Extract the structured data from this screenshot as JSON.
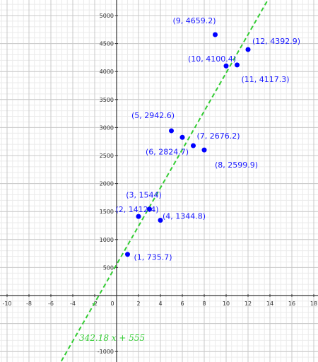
{
  "chart_data": {
    "type": "scatter",
    "title": "",
    "xlabel": "",
    "ylabel": "",
    "xlim": [
      -11,
      18
    ],
    "ylim": [
      -1100,
      5300
    ],
    "x_ticks": [
      "-10",
      "-8",
      "-6",
      "-4",
      "-2",
      "0",
      "2",
      "4",
      "6",
      "8",
      "10",
      "12",
      "14",
      "16",
      "18"
    ],
    "y_ticks": [
      "-1000",
      "500",
      "1000",
      "1500",
      "2000",
      "2500",
      "3000",
      "3500",
      "4000",
      "4500",
      "5000"
    ],
    "grid": true,
    "point_color": "#0000ff",
    "line_color": "#33cc33",
    "label_color": "#1a1aff",
    "points": [
      {
        "x": 1,
        "y": 735.7,
        "label": "(1, 735.7)"
      },
      {
        "x": 2,
        "y": 1412.4,
        "label": "(2, 1412.4)"
      },
      {
        "x": 3,
        "y": 1544,
        "label": "(3, 1544)"
      },
      {
        "x": 4,
        "y": 1344.8,
        "label": "(4, 1344.8)"
      },
      {
        "x": 5,
        "y": 2942.6,
        "label": "(5, 2942.6)"
      },
      {
        "x": 6,
        "y": 2824.7,
        "label": "(6, 2824.7)"
      },
      {
        "x": 7,
        "y": 2676.2,
        "label": "(7, 2676.2)"
      },
      {
        "x": 8,
        "y": 2599.9,
        "label": "(8, 2599.9)"
      },
      {
        "x": 9,
        "y": 4659.2,
        "label": "(9, 4659.2)"
      },
      {
        "x": 10,
        "y": 4100.4,
        "label": "(10, 4100.4)"
      },
      {
        "x": 11,
        "y": 4117.3,
        "label": "(11, 4117.3)"
      },
      {
        "x": 12,
        "y": 4392.9,
        "label": "(12, 4392.9)"
      }
    ],
    "trendline": {
      "slope": 342.18,
      "intercept": 555,
      "equation": "342.18 x + 555"
    }
  }
}
